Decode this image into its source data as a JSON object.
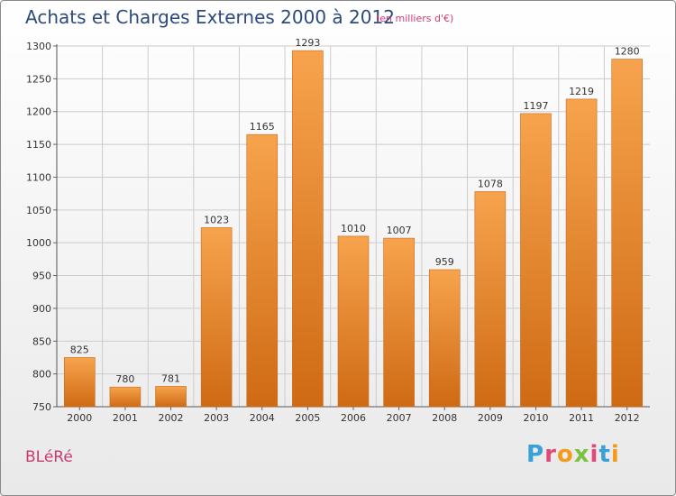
{
  "header": {
    "title": "Achats et Charges Externes 2000 à 2012",
    "subtitle": "(en milliers d'€)"
  },
  "footer": {
    "commune": "BLéRé",
    "brand_letters": [
      "P",
      "r",
      "o",
      "x",
      "i",
      "t",
      "i"
    ],
    "brand_colors": [
      "#3aa0d8",
      "#e04a7a",
      "#f39c1b",
      "#7cc242",
      "#e04a7a",
      "#3aa0d8",
      "#f39c1b"
    ]
  },
  "chart_data": {
    "type": "bar",
    "categories": [
      "2000",
      "2001",
      "2002",
      "2003",
      "2004",
      "2005",
      "2006",
      "2007",
      "2008",
      "2009",
      "2010",
      "2011",
      "2012"
    ],
    "values": [
      825,
      780,
      781,
      1023,
      1165,
      1293,
      1010,
      1007,
      959,
      1078,
      1197,
      1219,
      1280
    ],
    "title": "Achats et Charges Externes 2000 à 2012",
    "ylim": [
      750,
      1300
    ],
    "yticks": [
      750,
      800,
      850,
      900,
      950,
      1000,
      1050,
      1100,
      1150,
      1200,
      1250,
      1300
    ],
    "grid": true,
    "bar_color_top": "#f7a34d",
    "bar_color_bottom": "#cf6a14",
    "grid_color": "#cccccc"
  }
}
